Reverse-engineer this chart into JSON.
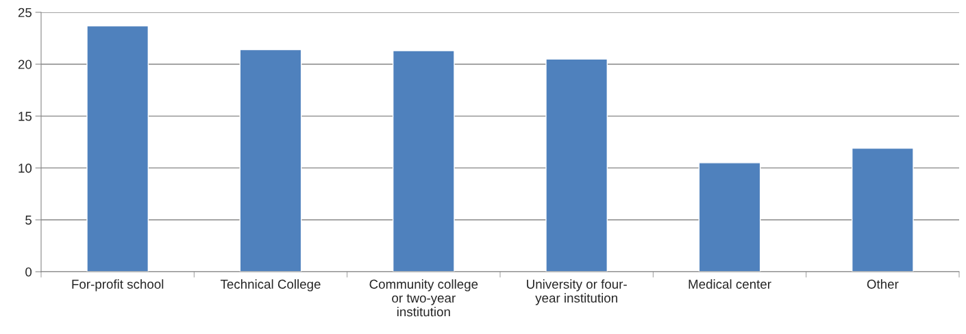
{
  "chart_data": {
    "type": "bar",
    "categories": [
      "For-profit school",
      "Technical College",
      "Community college or two-year institution",
      "University or four-year institution",
      "Medical center",
      "Other"
    ],
    "values": [
      23.7,
      21.4,
      21.3,
      20.5,
      10.5,
      11.9
    ],
    "color": "#4f81bd",
    "ylim": [
      0,
      25
    ],
    "yticks": [
      0,
      5,
      10,
      15,
      20,
      25
    ],
    "grid": "y"
  }
}
